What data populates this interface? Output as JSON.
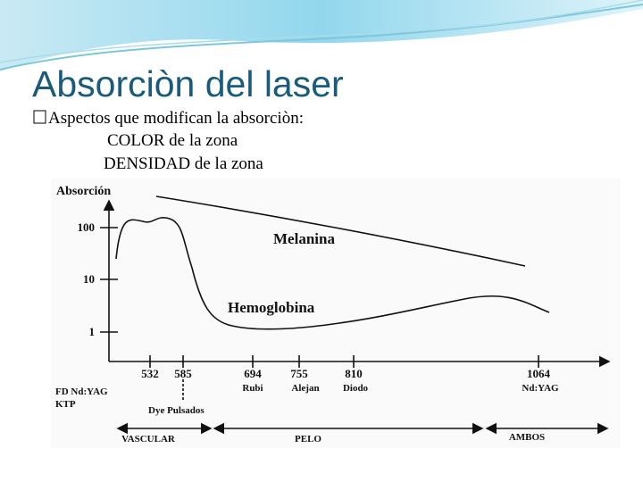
{
  "header": {
    "title": "Absorciòn del laser"
  },
  "bullets": [
    "Aspectos que modifican la absorciòn:",
    "COLOR de la zona",
    "DENSIDAD  de la zona"
  ],
  "figure": {
    "y_axis_title": "Absorción",
    "y_labels": [
      "100",
      "10",
      "1"
    ],
    "x_labels": [
      "532",
      "585",
      "694",
      "755",
      "810",
      "1064"
    ],
    "laser_labels": [
      "Rubi",
      "Alejan",
      "Diodo",
      "Nd:YAG"
    ],
    "left_labels": [
      "FD Nd:YAG",
      "KTP"
    ],
    "dye_label": "Dye Pulsados",
    "curve_labels": [
      "Melanina",
      "Hemoglobina"
    ],
    "ranges": [
      "VASCULAR",
      "PELO",
      "AMBOS"
    ]
  }
}
